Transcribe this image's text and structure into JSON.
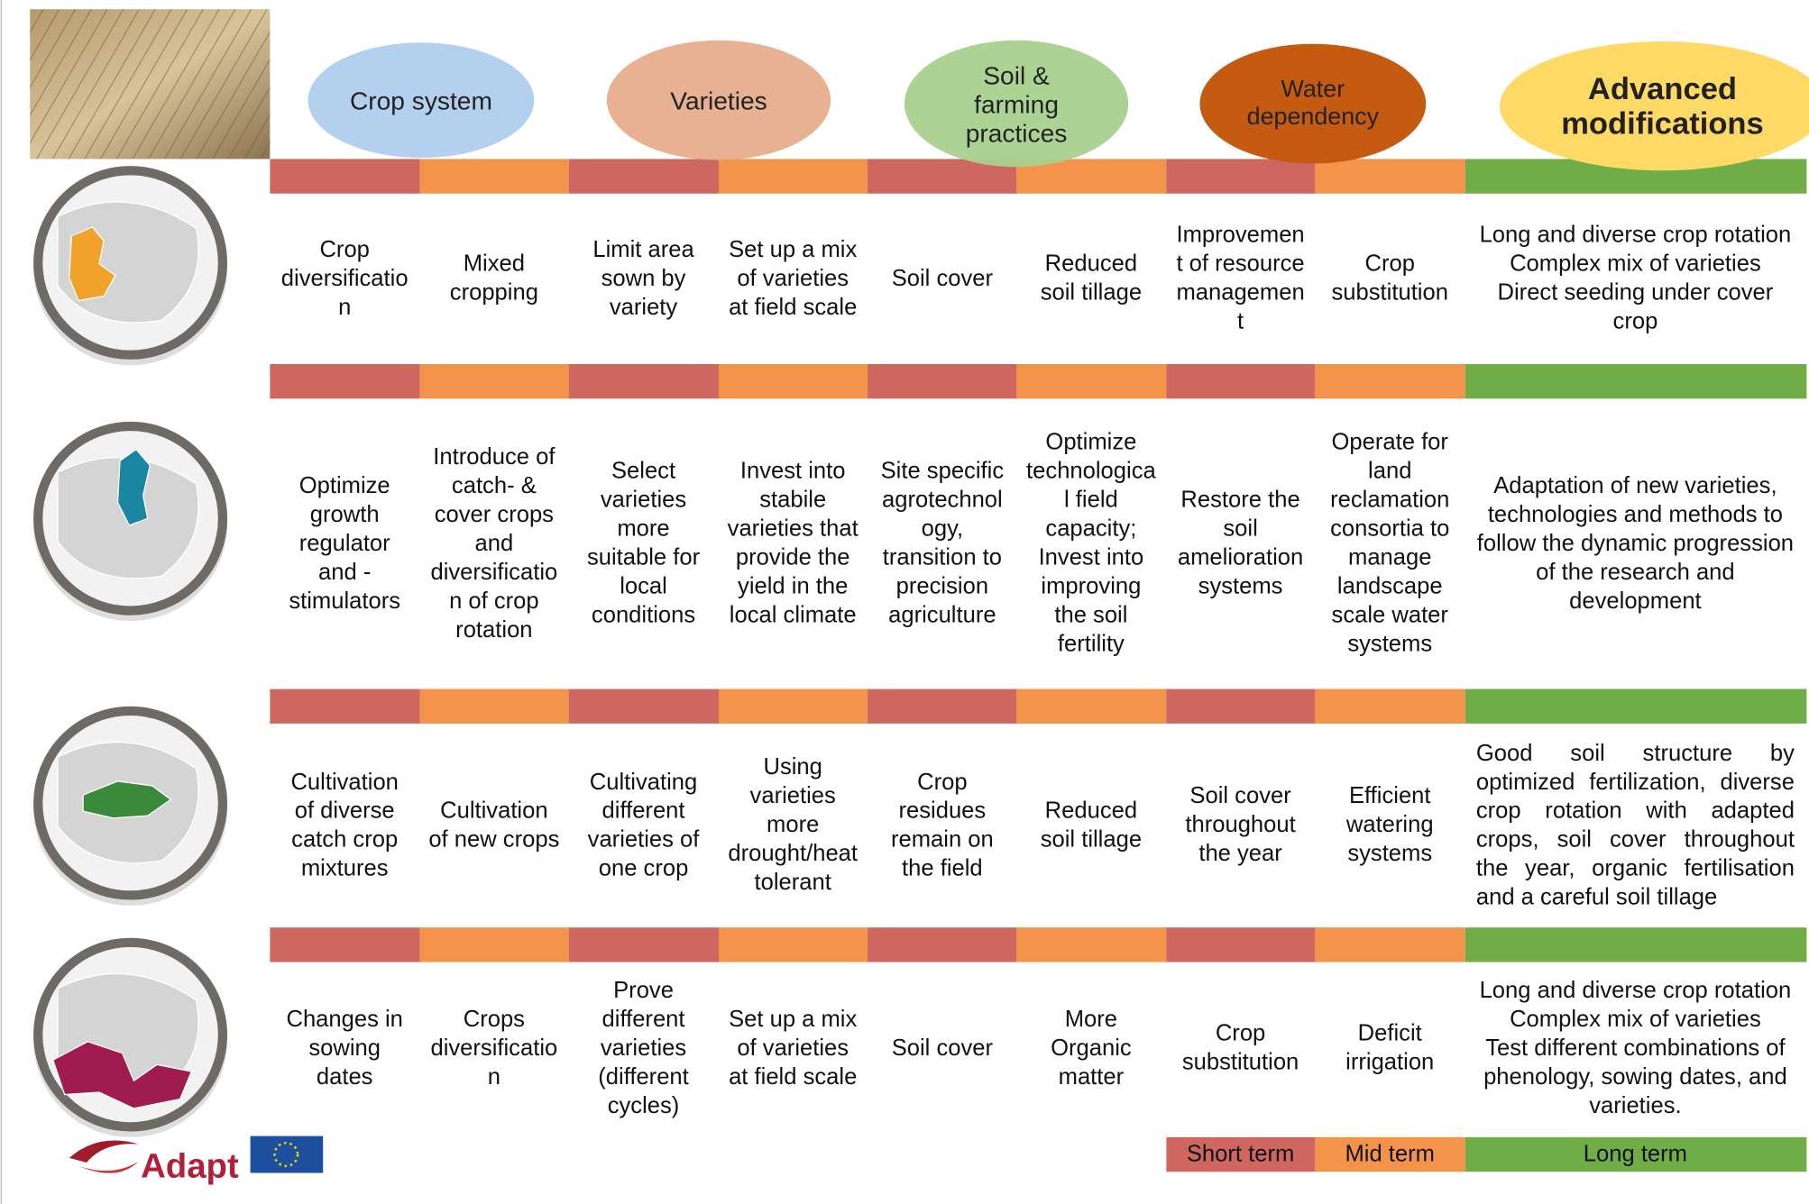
{
  "headers": [
    "Crop system",
    "Varieties",
    "Soil & farming practices",
    "Water dependency",
    "Advanced modifications"
  ],
  "rows": [
    {
      "cells": [
        "Crop diversification",
        "Mixed cropping",
        "Limit area sown by variety",
        "Set up a mix of varieties at field scale",
        "Soil cover",
        "Reduced soil tillage",
        "Improvement of resource management",
        "Crop substitution"
      ],
      "advanced": "Long and diverse crop rotation\nComplex mix of varieties\nDirect seeding under cover crop"
    },
    {
      "cells": [
        "Optimize growth regulator and -stimulators",
        "Introduce of catch- & cover crops and diversification of crop rotation",
        "Select varieties more suitable for local conditions",
        "Invest into stabile varieties that provide the yield in the local climate",
        "Site specific agrotechnology, transition to precision agriculture",
        "Optimize technological field capacity; Invest into improving the soil fertility",
        "Restore the soil amelioration systems",
        "Operate for land reclamation consortia to manage landscape scale water systems"
      ],
      "advanced": "Adaptation of new varieties, technologies and methods to follow the dynamic progression of the research and development"
    },
    {
      "cells": [
        "Cultivation of diverse catch crop mixtures",
        "Cultivation of new crops",
        "Cultivating different varieties of one crop",
        "Using varieties more drought/heat tolerant",
        "Crop residues remain on the field",
        "Reduced soil tillage",
        "Soil cover throughout the year",
        "Efficient watering systems"
      ],
      "advanced": "Good soil structure by optimized fertilization, diverse crop rotation with adapted crops, soil cover throughout the year, organic fertilisation and a careful soil tillage"
    },
    {
      "cells": [
        "Changes in sowing dates",
        "Crops diversification",
        "Prove different varieties (different cycles)",
        "Set up a mix of varieties at field scale",
        "Soil cover",
        "More Organic matter",
        "Crop substitution",
        "Deficit irrigation"
      ],
      "advanced": "Long and diverse crop rotation\nComplex mix of varieties\nTest different combinations of phenology, sowing dates, and varieties."
    }
  ],
  "legend": [
    "Short term",
    "Mid term",
    "Long term"
  ],
  "logo": "Adapt"
}
